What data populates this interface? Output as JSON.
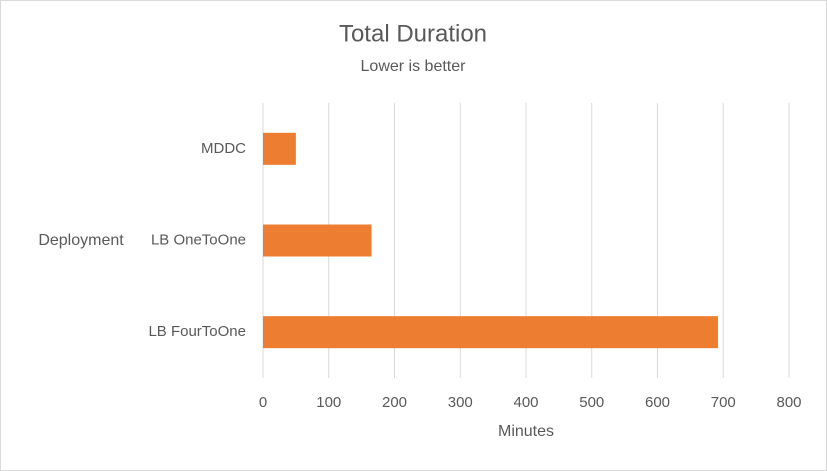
{
  "chart_data": {
    "type": "bar",
    "orientation": "horizontal",
    "title": "Total Duration",
    "subtitle": "Lower is better",
    "categories": [
      "MDDC",
      "LB OneToOne",
      "LB FourToOne"
    ],
    "values": [
      50,
      165,
      692
    ],
    "color": "#ed7d31",
    "x_label": "Minutes",
    "y_label": "Deployment",
    "xlim": [
      0,
      800
    ],
    "xticks": [
      0,
      100,
      200,
      300,
      400,
      500,
      600,
      700,
      800
    ],
    "grid": true
  }
}
